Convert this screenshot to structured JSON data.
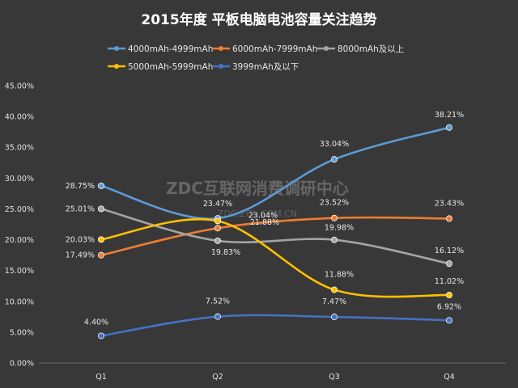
{
  "chart_data": {
    "type": "line",
    "title": "2015年度 平板电脑电池容量关注趋势",
    "categories": [
      "Q1",
      "Q2",
      "Q3",
      "Q4"
    ],
    "xlabel": "",
    "ylabel": "",
    "ylim": [
      0,
      45
    ],
    "yticks": [
      "0.00%",
      "5.00%",
      "10.00%",
      "15.00%",
      "20.00%",
      "25.00%",
      "30.00%",
      "35.00%",
      "40.00%",
      "45.00%"
    ],
    "legend_position": "top",
    "series": [
      {
        "name": "4000mAh-4999mAh",
        "color": "#5b9bd5",
        "values": [
          28.75,
          23.47,
          33.04,
          38.21
        ],
        "labels": [
          "28.75%",
          "23.47%",
          "33.04%",
          "38.21%"
        ]
      },
      {
        "name": "6000mAh-7999mAh",
        "color": "#ed7d31",
        "values": [
          17.49,
          21.88,
          23.52,
          23.43
        ],
        "labels": [
          "17.49%",
          "21.88%",
          "23.52%",
          "23.43%"
        ]
      },
      {
        "name": "8000mAh及以上",
        "color": "#a5a5a5",
        "values": [
          25.01,
          19.83,
          19.98,
          16.12
        ],
        "labels": [
          "25.01%",
          "19.83%",
          "19.98%",
          "16.12%"
        ]
      },
      {
        "name": "5000mAh-5999mAh",
        "color": "#ffc000",
        "values": [
          20.03,
          23.04,
          11.88,
          11.02
        ],
        "labels": [
          "20.03%",
          "23.04%",
          "11.88%",
          "11.02%"
        ]
      },
      {
        "name": "3999mAh及以下",
        "color": "#4472c4",
        "values": [
          4.4,
          7.52,
          7.47,
          6.92
        ],
        "labels": [
          "4.40%",
          "7.52%",
          "7.47%",
          "6.92%"
        ]
      }
    ],
    "watermark": "ZDC互联网消费调研中心",
    "watermark_sub": "ZDC.ZOL.COM.CN"
  }
}
